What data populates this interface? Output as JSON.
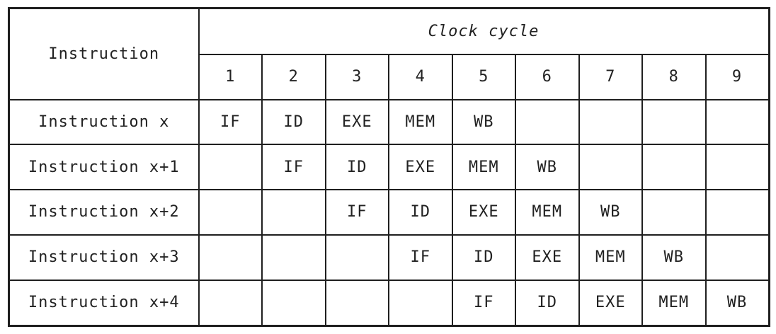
{
  "table": {
    "corner_header": "Instruction",
    "group_header": "Clock cycle",
    "cycle_headers": [
      "1",
      "2",
      "3",
      "4",
      "5",
      "6",
      "7",
      "8",
      "9"
    ],
    "rows": [
      {
        "label": "Instruction x",
        "cells": [
          "IF",
          "ID",
          "EXE",
          "MEM",
          "WB",
          "",
          "",
          "",
          ""
        ]
      },
      {
        "label": "Instruction x+1",
        "cells": [
          "",
          "IF",
          "ID",
          "EXE",
          "MEM",
          "WB",
          "",
          "",
          ""
        ]
      },
      {
        "label": "Instruction x+2",
        "cells": [
          "",
          "",
          "IF",
          "ID",
          "EXE",
          "MEM",
          "WB",
          "",
          ""
        ]
      },
      {
        "label": "Instruction x+3",
        "cells": [
          "",
          "",
          "",
          "IF",
          "ID",
          "EXE",
          "MEM",
          "WB",
          ""
        ]
      },
      {
        "label": "Instruction x+4",
        "cells": [
          "",
          "",
          "",
          "",
          "IF",
          "ID",
          "EXE",
          "MEM",
          "WB"
        ]
      }
    ],
    "colors": {
      "border": "#1f1f1f",
      "text": "#222222",
      "background": "#ffffff"
    }
  }
}
